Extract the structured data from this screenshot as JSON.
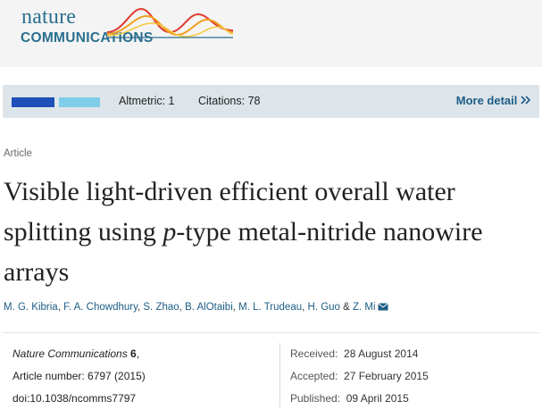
{
  "header": {
    "logo_line1": "nature",
    "logo_line2": "COMMUNICATIONS",
    "brand_color": "#2a6f8f"
  },
  "metrics": {
    "altmetric": "Altmetric: 1",
    "citations": "Citations: 78",
    "more_detail": "More detail",
    "more_icon": "double-chevron-right-icon",
    "bar_colors": [
      "#1f4fb8",
      "#7fcde8"
    ]
  },
  "article": {
    "type": "Article",
    "title_pre": "Visible light-driven efficient overall water splitting using ",
    "title_italic": "p",
    "title_post": "-type metal-nitride nanowire arrays",
    "authors": [
      "M. G. Kibria",
      "F. A. Chowdhury",
      "S. Zhao",
      "B. AlOtaibi",
      "M. L. Trudeau",
      "H. Guo",
      "Z. Mi"
    ],
    "authors_sep": ", ",
    "authors_last_sep": " & ",
    "mail_icon": "email-icon"
  },
  "meta": {
    "journal": "Nature Communications",
    "volume": " 6",
    "volume_suffix": ",",
    "article_number": "Article number: 6797 (2015)",
    "doi": "doi:10.1038/ncomms7797",
    "received_label": "Received:",
    "received": "28 August 2014",
    "accepted_label": "Accepted:",
    "accepted": "27 February 2015",
    "published_label": "Published:",
    "published": "09 April 2015"
  }
}
